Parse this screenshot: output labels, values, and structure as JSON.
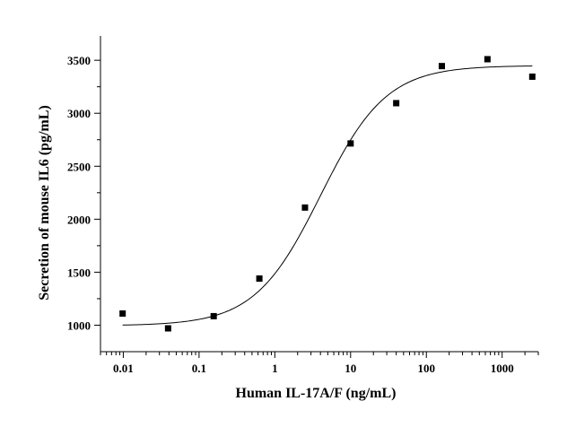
{
  "chart_data": {
    "type": "scatter",
    "xlabel": "Human IL-17A/F (ng/mL)",
    "ylabel": "Secretion of mouse IL6 (pg/mL)",
    "x_scale": "log",
    "xlim": [
      0.005,
      3000
    ],
    "ylim": [
      750,
      3730
    ],
    "x_ticks": [
      {
        "value": 0.01,
        "label": "0.01"
      },
      {
        "value": 0.1,
        "label": "0.1"
      },
      {
        "value": 1,
        "label": "1"
      },
      {
        "value": 10,
        "label": "10"
      },
      {
        "value": 100,
        "label": "100"
      },
      {
        "value": 1000,
        "label": "1000"
      }
    ],
    "y_ticks": [
      {
        "value": 1000,
        "label": "1000"
      },
      {
        "value": 1500,
        "label": "1500"
      },
      {
        "value": 2000,
        "label": "2000"
      },
      {
        "value": 2500,
        "label": "2500"
      },
      {
        "value": 3000,
        "label": "3000"
      },
      {
        "value": 3500,
        "label": "3500"
      }
    ],
    "grid": false,
    "legend": "none",
    "series": [
      {
        "kind": "points",
        "x": [
          0.0098,
          0.039,
          0.156,
          0.625,
          2.5,
          10,
          40,
          160,
          640,
          2500
        ],
        "y": [
          1110,
          970,
          1085,
          1440,
          2110,
          2715,
          3095,
          3445,
          3510,
          3345
        ],
        "marker": "square",
        "color": "#000000"
      },
      {
        "kind": "fit",
        "model": "4PL",
        "bottom": 995,
        "top": 3450,
        "ec50": 4.0,
        "hill": 1.0,
        "color": "#000000"
      }
    ]
  }
}
